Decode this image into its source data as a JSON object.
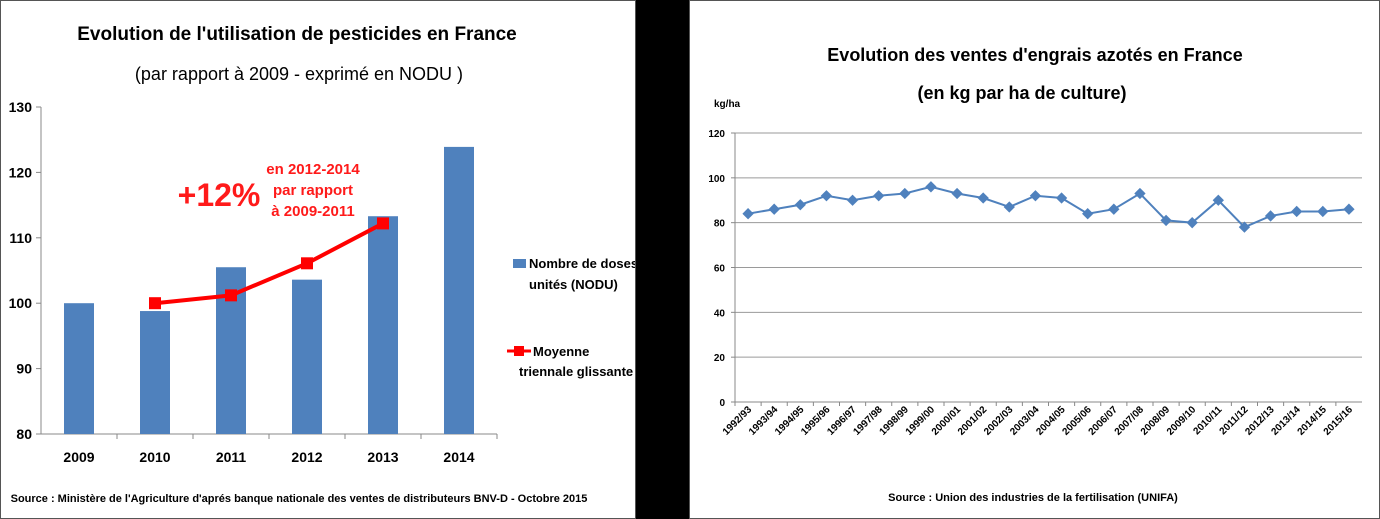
{
  "chart_data": [
    {
      "type": "bar",
      "title": "Evolution de l'utilisation de pesticides en France",
      "subtitle": "(par rapport à 2009 - exprimé en NODU )",
      "categories": [
        "2009",
        "2010",
        "2011",
        "2012",
        "2013",
        "2014"
      ],
      "ylim": [
        80,
        130
      ],
      "yticks": [
        "80",
        "90",
        "100",
        "110",
        "120",
        "130"
      ],
      "series": [
        {
          "name": "Nombre de doses unités (NODU)",
          "type": "bar",
          "color": "#4f81bd",
          "values": [
            100,
            98.8,
            105.5,
            103.6,
            113.3,
            123.9
          ]
        },
        {
          "name": "Moyenne triennale glissante",
          "type": "line",
          "color": "#ff0000",
          "values": [
            null,
            100,
            101.2,
            106.1,
            112.2,
            null
          ]
        }
      ],
      "legend": [
        "Nombre de doses",
        "unités (NODU)",
        "Moyenne",
        "triennale glissante"
      ],
      "annotation": {
        "big": "+12%",
        "lines": [
          "en 2012-2014",
          "par rapport",
          "à 2009-2011"
        ]
      },
      "grid": false,
      "source": "Source : Ministère de l'Agriculture d'aprés banque nationale des ventes de distributeurs BNV-D - Octobre 2015"
    },
    {
      "type": "line",
      "title": "Evolution des ventes d'engrais azotés en France",
      "subtitle": "(en kg par ha de culture)",
      "ylabel": "kg/ha",
      "categories": [
        "1992/93",
        "1993/94",
        "1994/95",
        "1995/96",
        "1996/97",
        "1997/98",
        "1998/99",
        "1999/00",
        "2000/01",
        "2001/02",
        "2002/03",
        "2003/04",
        "2004/05",
        "2005/06",
        "2006/07",
        "2007/08",
        "2008/09",
        "2009/10",
        "2010/11",
        "2011/12",
        "2012/13",
        "2013/14",
        "2014/15",
        "2015/16"
      ],
      "ylim": [
        0,
        120
      ],
      "yticks": [
        "0",
        "20",
        "40",
        "60",
        "80",
        "100",
        "120"
      ],
      "series": [
        {
          "color": "#4f81bd",
          "values": [
            84,
            86,
            88,
            92,
            90,
            92,
            93,
            96,
            93,
            91,
            87,
            92,
            91,
            84,
            86,
            93,
            81,
            80,
            90,
            78,
            83,
            85,
            85,
            86
          ]
        }
      ],
      "grid": true,
      "source": "Source : Union des industries de la fertilisation (UNIFA)"
    }
  ]
}
